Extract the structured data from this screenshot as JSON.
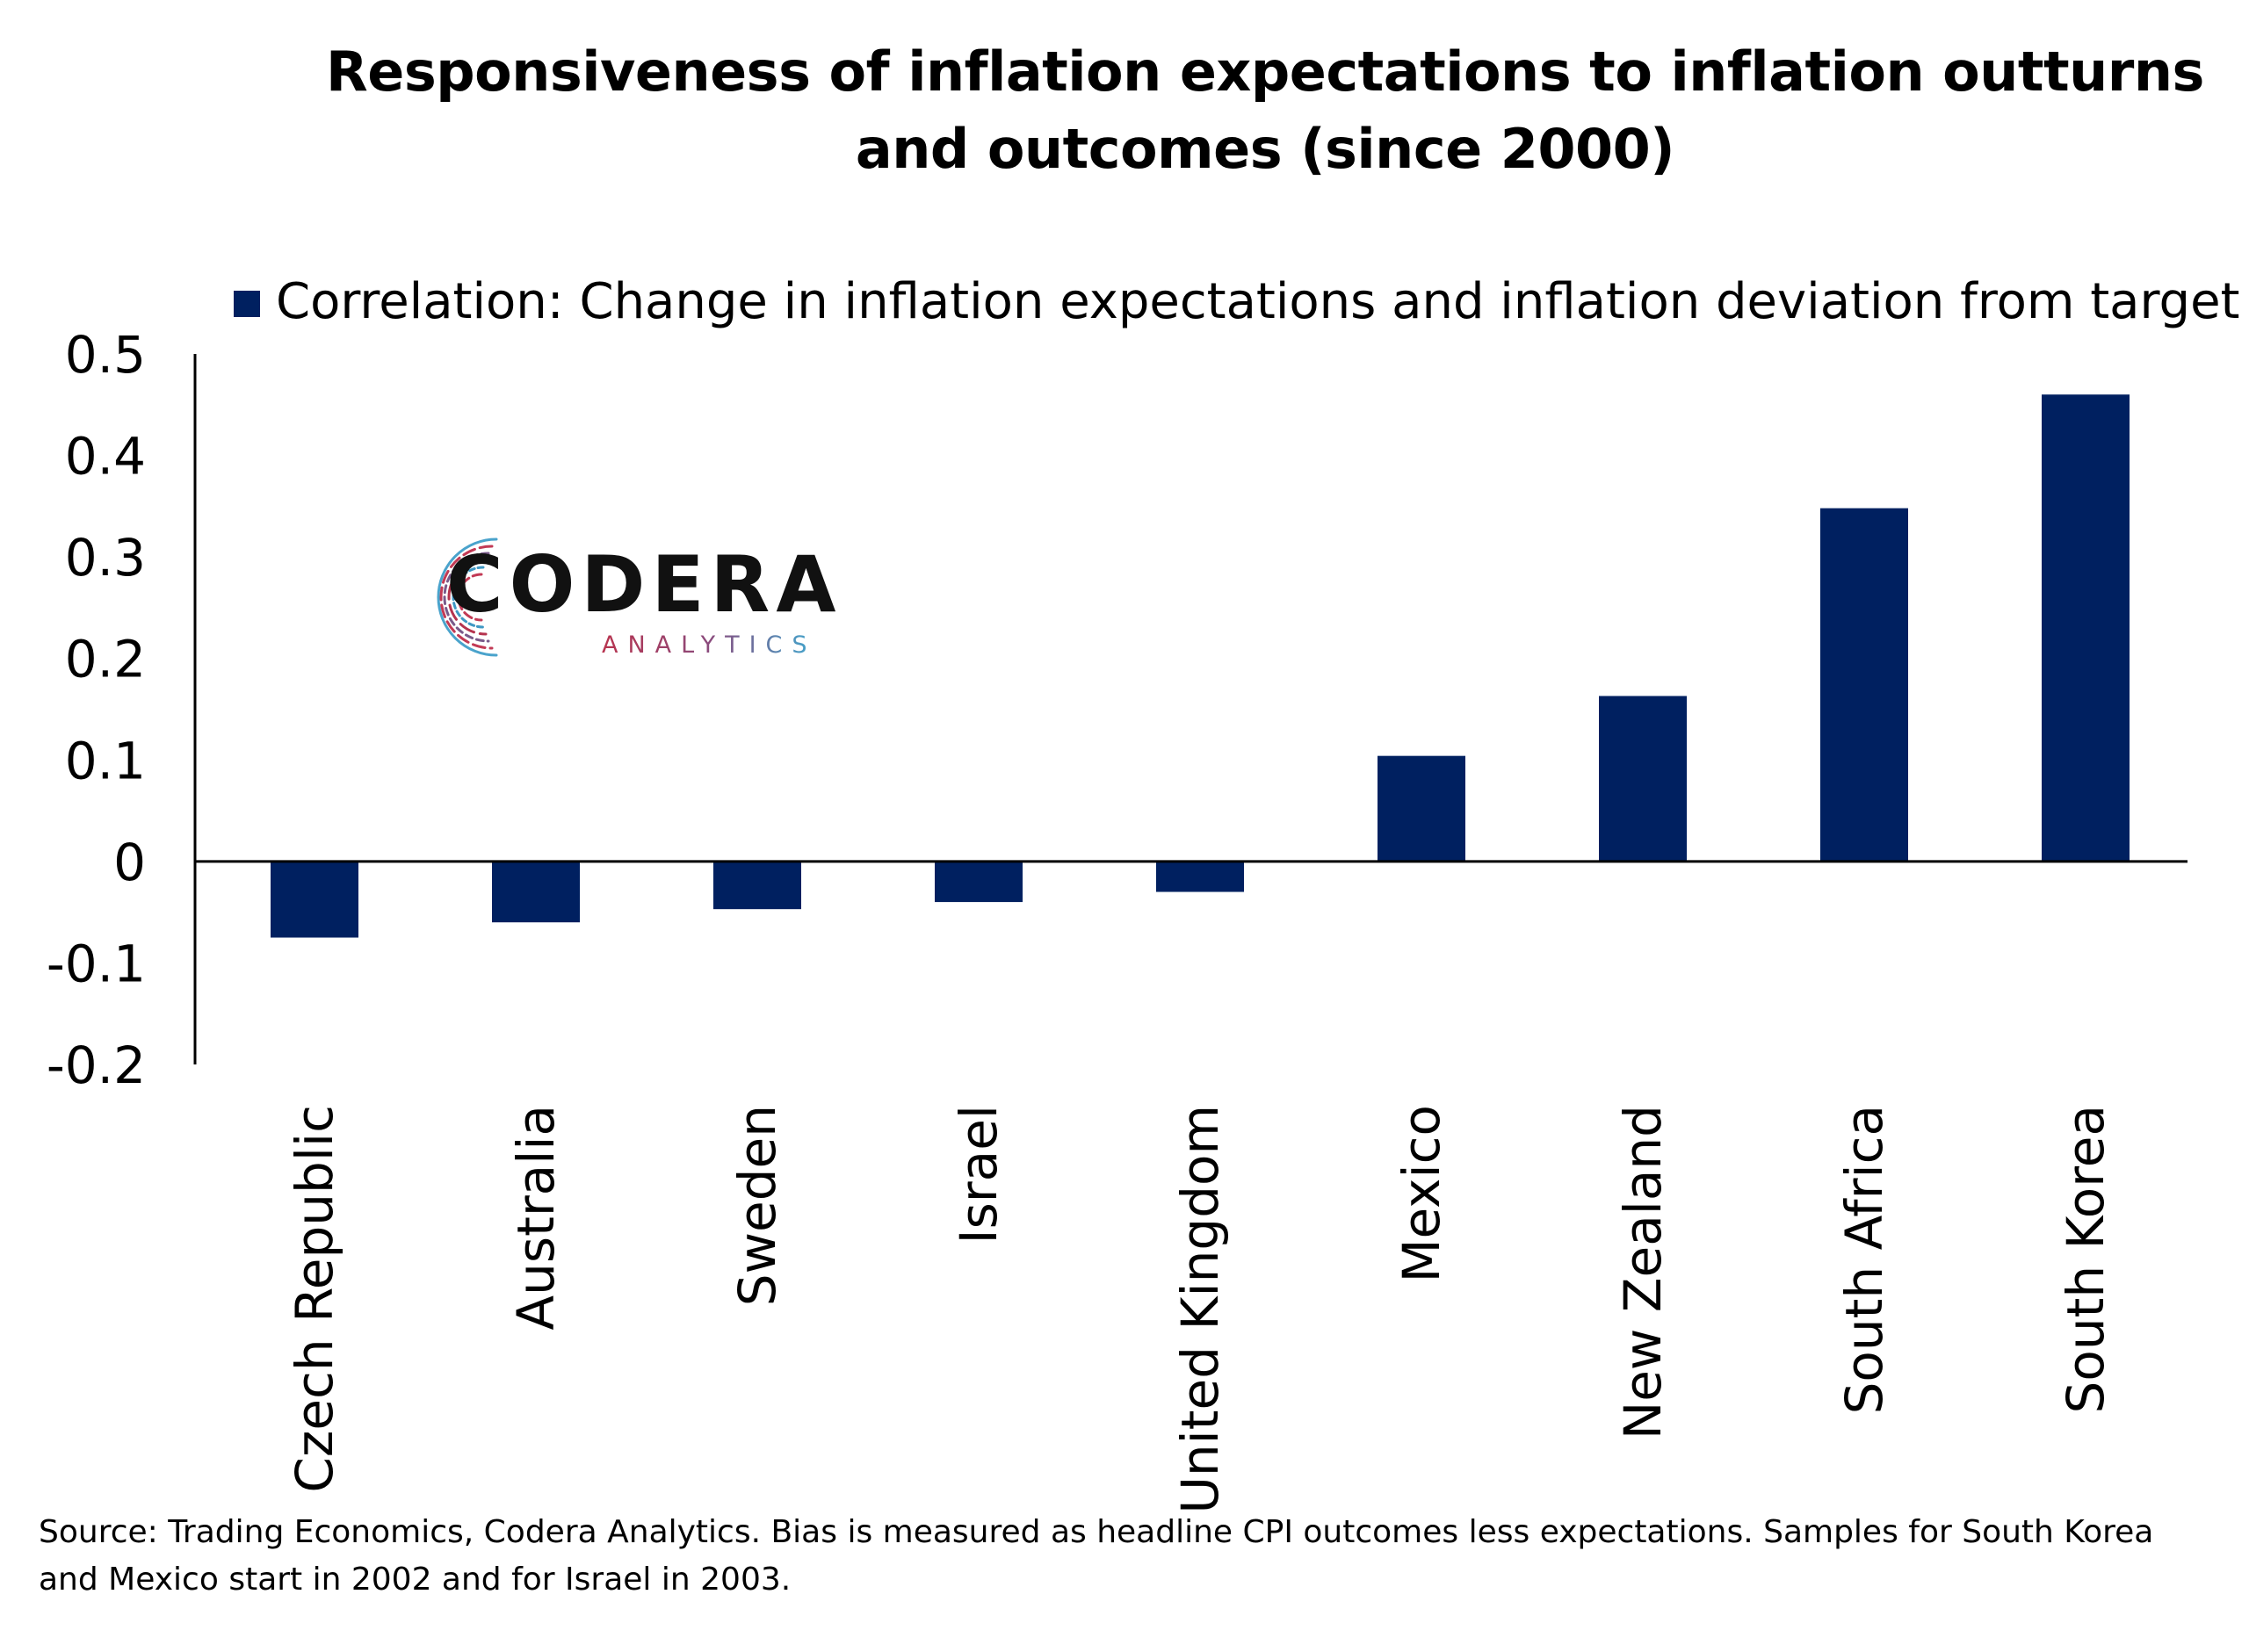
{
  "chart_data": {
    "type": "bar",
    "title": "Responsiveness of inflation expectations to inflation outturns and outcomes (since 2000)",
    "categories": [
      "Czech Republic",
      "Australia",
      "Sweden",
      "Israel",
      "United Kingdom",
      "Mexico",
      "New Zealand",
      "South Africa",
      "South Korea"
    ],
    "series": [
      {
        "name": "Correlation: Change in inflation expectations and inflation deviation from target",
        "color": "#002060",
        "values": [
          -0.075,
          -0.06,
          -0.047,
          -0.04,
          -0.03,
          0.104,
          0.163,
          0.348,
          0.46
        ]
      }
    ],
    "xlabel": "",
    "ylabel": "",
    "ylim": [
      -0.2,
      0.5
    ],
    "yticks": [
      0.5,
      0.4,
      0.3,
      0.2,
      0.1,
      0,
      -0.1,
      -0.2
    ],
    "ytick_labels": [
      "0.5",
      "0.4",
      "0.3",
      "0.2",
      "0.1",
      "0",
      "-0.1",
      "-0.2"
    ],
    "grid": false,
    "legend_position": "top"
  },
  "logo": {
    "name": "codera-logo-icon",
    "word": "CODERA",
    "sub": "ANALYTICS"
  },
  "source_note": "Source: Trading Economics, Codera Analytics. Bias is measured as headline CPI outcomes less expectations. Samples for South Korea and Mexico start in 2002 and for Israel in 2003."
}
